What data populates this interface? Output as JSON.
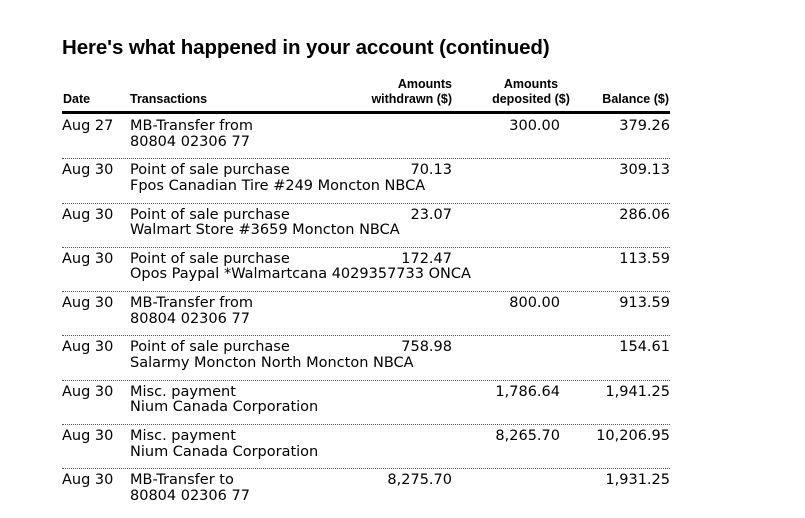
{
  "page": {
    "title": "Here's what happened in your account (continued)"
  },
  "table": {
    "headers": {
      "date": "Date",
      "transactions": "Transactions",
      "withdrawn_line1": "Amounts",
      "withdrawn_line2": "withdrawn ($)",
      "deposited_line1": "Amounts",
      "deposited_line2": "deposited ($)",
      "balance": "Balance ($)"
    },
    "rows": [
      {
        "date": "Aug 27",
        "desc1": "MB-Transfer from",
        "desc2": "80804 02306 77",
        "withdrawn": "",
        "deposited": "300.00",
        "balance": "379.26"
      },
      {
        "date": "Aug 30",
        "desc1": "Point of sale purchase",
        "desc2": "Fpos Canadian Tire #249 Moncton NBCA",
        "withdrawn": "70.13",
        "deposited": "",
        "balance": "309.13"
      },
      {
        "date": "Aug 30",
        "desc1": "Point of sale purchase",
        "desc2": "Walmart Store #3659 Moncton NBCA",
        "withdrawn": "23.07",
        "deposited": "",
        "balance": "286.06"
      },
      {
        "date": "Aug 30",
        "desc1": "Point of sale purchase",
        "desc2": "Opos Paypal *Walmartcana 4029357733 ONCA",
        "withdrawn": "172.47",
        "deposited": "",
        "balance": "113.59"
      },
      {
        "date": "Aug 30",
        "desc1": "MB-Transfer from",
        "desc2": "80804 02306 77",
        "withdrawn": "",
        "deposited": "800.00",
        "balance": "913.59"
      },
      {
        "date": "Aug 30",
        "desc1": "Point of sale purchase",
        "desc2": "Salarmy Moncton North Moncton NBCA",
        "withdrawn": "758.98",
        "deposited": "",
        "balance": "154.61"
      },
      {
        "date": "Aug 30",
        "desc1": "Misc. payment",
        "desc2": "Nium Canada Corporation",
        "withdrawn": "",
        "deposited": "1,786.64",
        "balance": "1,941.25"
      },
      {
        "date": "Aug 30",
        "desc1": "Misc. payment",
        "desc2": "Nium Canada Corporation",
        "withdrawn": "",
        "deposited": "8,265.70",
        "balance": "10,206.95"
      },
      {
        "date": "Aug 30",
        "desc1": "MB-Transfer to",
        "desc2": "80804 02306 77",
        "withdrawn": "8,275.70",
        "deposited": "",
        "balance": "1,931.25"
      }
    ]
  }
}
